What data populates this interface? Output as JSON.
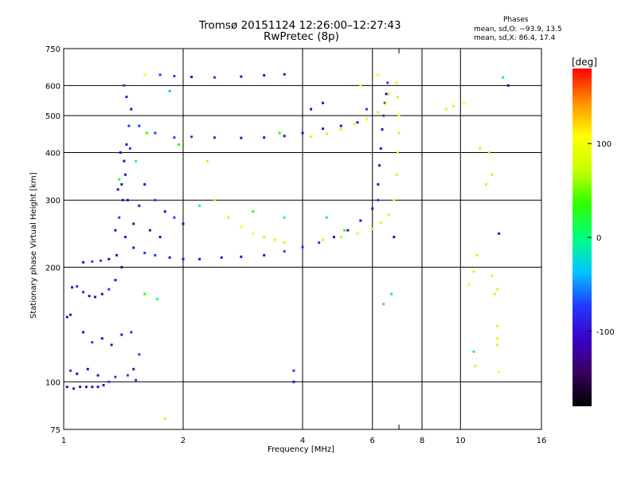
{
  "header": {
    "title_line1": "Tromsø 20151124 12:26:00–12:27:43",
    "title_line2": "RwPretec (8p)",
    "stats_heading": "Phases",
    "stats_line1": "mean, sd,O: −93.9, 13.5",
    "stats_line2": "mean, sd,X:  86.4, 17.4"
  },
  "chart_data": {
    "type": "scatter",
    "title": "Tromsø 20151124 12:26:00–12:27:43",
    "subtitle": "RwPretec (8p)",
    "xlabel": "Frequency [MHz]",
    "ylabel": "Stationary phase Virtual Height [km]",
    "x_scale": "log",
    "y_scale": "log",
    "xlim": [
      1,
      16
    ],
    "ylim": [
      75,
      750
    ],
    "x_ticks": [
      1,
      2,
      4,
      6,
      8,
      10,
      16
    ],
    "x_minor_ticks": [
      7
    ],
    "y_ticks": [
      75,
      100,
      200,
      300,
      400,
      500,
      600,
      750
    ],
    "grid": true,
    "colorbar": {
      "label": "[deg]",
      "range": [
        -180,
        180
      ],
      "ticks": [
        100,
        0,
        -100
      ],
      "colors": [
        "#000000",
        "#3a0060",
        "#3b00c8",
        "#1f3cff",
        "#00c8ff",
        "#00ff7f",
        "#30ff00",
        "#c8ff00",
        "#ffff00",
        "#ff9000",
        "#ff0000"
      ]
    },
    "series": [
      {
        "name": "O-mode",
        "mean_phase": -93.9,
        "sd_phase": 13.5,
        "points": [
          [
            1.02,
            97
          ],
          [
            1.06,
            96
          ],
          [
            1.1,
            97
          ],
          [
            1.14,
            97
          ],
          [
            1.18,
            97
          ],
          [
            1.22,
            97
          ],
          [
            1.26,
            98
          ],
          [
            1.3,
            100
          ],
          [
            1.02,
            148
          ],
          [
            1.04,
            150
          ],
          [
            1.05,
            177
          ],
          [
            1.08,
            178
          ],
          [
            1.12,
            172
          ],
          [
            1.16,
            168
          ],
          [
            1.2,
            167
          ],
          [
            1.25,
            170
          ],
          [
            1.3,
            175
          ],
          [
            1.35,
            185
          ],
          [
            1.4,
            200
          ],
          [
            1.43,
            240
          ],
          [
            1.45,
            300
          ],
          [
            1.12,
            206
          ],
          [
            1.18,
            207
          ],
          [
            1.24,
            208
          ],
          [
            1.3,
            210
          ],
          [
            1.36,
            215
          ],
          [
            1.38,
            270
          ],
          [
            1.4,
            330
          ],
          [
            1.42,
            380
          ],
          [
            1.44,
            420
          ],
          [
            1.46,
            470
          ],
          [
            1.48,
            520
          ],
          [
            1.44,
            560
          ],
          [
            1.42,
            600
          ],
          [
            1.35,
            250
          ],
          [
            1.37,
            320
          ],
          [
            1.39,
            400
          ],
          [
            1.41,
            300
          ],
          [
            1.43,
            350
          ],
          [
            1.47,
            410
          ],
          [
            1.5,
            260
          ],
          [
            1.55,
            290
          ],
          [
            1.6,
            330
          ],
          [
            1.7,
            300
          ],
          [
            1.8,
            280
          ],
          [
            1.9,
            270
          ],
          [
            2.0,
            260
          ],
          [
            1.65,
            250
          ],
          [
            1.75,
            240
          ],
          [
            1.5,
            225
          ],
          [
            1.6,
            218
          ],
          [
            1.7,
            215
          ],
          [
            1.85,
            212
          ],
          [
            2.0,
            210
          ],
          [
            2.2,
            210
          ],
          [
            2.5,
            212
          ],
          [
            2.8,
            213
          ],
          [
            3.2,
            215
          ],
          [
            3.6,
            220
          ],
          [
            4.0,
            226
          ],
          [
            4.4,
            232
          ],
          [
            4.8,
            240
          ],
          [
            5.2,
            250
          ],
          [
            5.6,
            265
          ],
          [
            6.0,
            285
          ],
          [
            6.2,
            300
          ],
          [
            6.2,
            330
          ],
          [
            6.25,
            370
          ],
          [
            6.3,
            410
          ],
          [
            6.35,
            460
          ],
          [
            6.4,
            500
          ],
          [
            6.45,
            540
          ],
          [
            6.5,
            570
          ],
          [
            6.55,
            610
          ],
          [
            1.55,
            470
          ],
          [
            1.7,
            450
          ],
          [
            1.9,
            438
          ],
          [
            2.1,
            440
          ],
          [
            2.4,
            438
          ],
          [
            2.8,
            437
          ],
          [
            3.2,
            438
          ],
          [
            3.6,
            442
          ],
          [
            4.0,
            450
          ],
          [
            4.5,
            462
          ],
          [
            5.0,
            470
          ],
          [
            5.5,
            480
          ],
          [
            1.75,
            640
          ],
          [
            1.9,
            635
          ],
          [
            2.1,
            632
          ],
          [
            2.4,
            630
          ],
          [
            2.8,
            633
          ],
          [
            3.2,
            638
          ],
          [
            3.6,
            642
          ],
          [
            4.2,
            520
          ],
          [
            4.5,
            540
          ],
          [
            5.8,
            520
          ],
          [
            1.12,
            135
          ],
          [
            1.18,
            127
          ],
          [
            1.25,
            130
          ],
          [
            1.32,
            125
          ],
          [
            1.4,
            133
          ],
          [
            1.48,
            135
          ],
          [
            1.55,
            118
          ],
          [
            1.08,
            105
          ],
          [
            1.15,
            108
          ],
          [
            1.22,
            104
          ],
          [
            1.35,
            103
          ],
          [
            1.45,
            104
          ],
          [
            1.52,
            101
          ],
          [
            1.04,
            107
          ],
          [
            1.5,
            108
          ],
          [
            3.8,
            107
          ],
          [
            3.8,
            100
          ],
          [
            13.2,
            600
          ],
          [
            12.5,
            245
          ],
          [
            6.8,
            240
          ]
        ]
      },
      {
        "name": "X-mode",
        "mean_phase": 86.4,
        "sd_phase": 17.4,
        "points": [
          [
            2.6,
            270
          ],
          [
            2.8,
            255
          ],
          [
            3.0,
            245
          ],
          [
            3.2,
            240
          ],
          [
            3.4,
            236
          ],
          [
            3.6,
            232
          ],
          [
            4.5,
            236
          ],
          [
            5.0,
            240
          ],
          [
            5.5,
            245
          ],
          [
            6.0,
            252
          ],
          [
            6.3,
            262
          ],
          [
            6.6,
            275
          ],
          [
            6.8,
            300
          ],
          [
            6.9,
            350
          ],
          [
            6.95,
            400
          ],
          [
            7.0,
            450
          ],
          [
            7.0,
            500
          ],
          [
            6.95,
            560
          ],
          [
            6.9,
            610
          ],
          [
            4.2,
            440
          ],
          [
            4.6,
            448
          ],
          [
            5.0,
            460
          ],
          [
            5.4,
            475
          ],
          [
            5.8,
            490
          ],
          [
            6.2,
            510
          ],
          [
            6.5,
            540
          ],
          [
            6.6,
            570
          ],
          [
            5.6,
            600
          ],
          [
            6.2,
            640
          ],
          [
            1.6,
            640
          ],
          [
            1.8,
            80
          ],
          [
            9.6,
            530
          ],
          [
            9.2,
            520
          ],
          [
            10.2,
            540
          ],
          [
            11.2,
            410
          ],
          [
            10.8,
            195
          ],
          [
            11.0,
            215
          ],
          [
            12.0,
            190
          ],
          [
            12.4,
            175
          ],
          [
            12.4,
            140
          ],
          [
            12.4,
            130
          ],
          [
            12.4,
            125
          ],
          [
            12.2,
            170
          ],
          [
            12.5,
            106
          ],
          [
            10.9,
            110
          ],
          [
            11.8,
            400
          ],
          [
            12.0,
            350
          ],
          [
            10.5,
            180
          ]
        ]
      },
      {
        "name": "other",
        "points": [
          [
            1.38,
            340
          ],
          [
            1.52,
            380
          ],
          [
            1.62,
            450
          ],
          [
            1.95,
            420
          ],
          [
            2.2,
            290
          ],
          [
            2.4,
            300
          ],
          [
            3.0,
            280
          ],
          [
            3.6,
            270
          ],
          [
            4.6,
            270
          ],
          [
            5.1,
            250
          ],
          [
            3.5,
            450
          ],
          [
            6.4,
            160
          ],
          [
            6.7,
            170
          ],
          [
            11.6,
            330
          ],
          [
            12.8,
            630
          ],
          [
            1.6,
            170
          ],
          [
            1.72,
            165
          ],
          [
            1.85,
            580
          ],
          [
            2.3,
            380
          ],
          [
            10.8,
            120
          ]
        ]
      }
    ]
  }
}
